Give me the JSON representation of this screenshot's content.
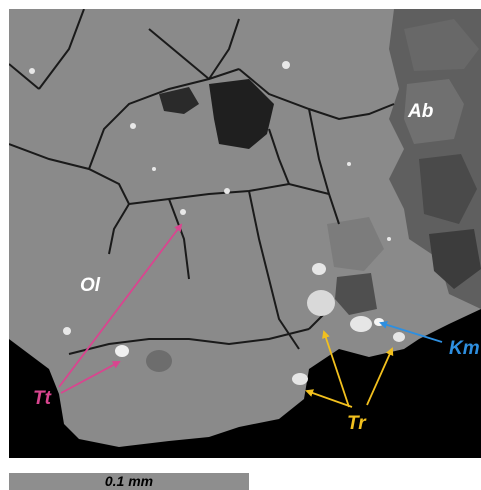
{
  "labels": {
    "ab": "Ab",
    "ol": "Ol",
    "tt": "Tt",
    "tr": "Tr",
    "km": "Km"
  },
  "label_colors": {
    "ab": "#ffffff",
    "ol": "#ffffff",
    "tt": "#d9458f",
    "tr": "#f2c01e",
    "km": "#2e8fe0"
  },
  "scale_bar": {
    "text": "0.1 mm"
  }
}
